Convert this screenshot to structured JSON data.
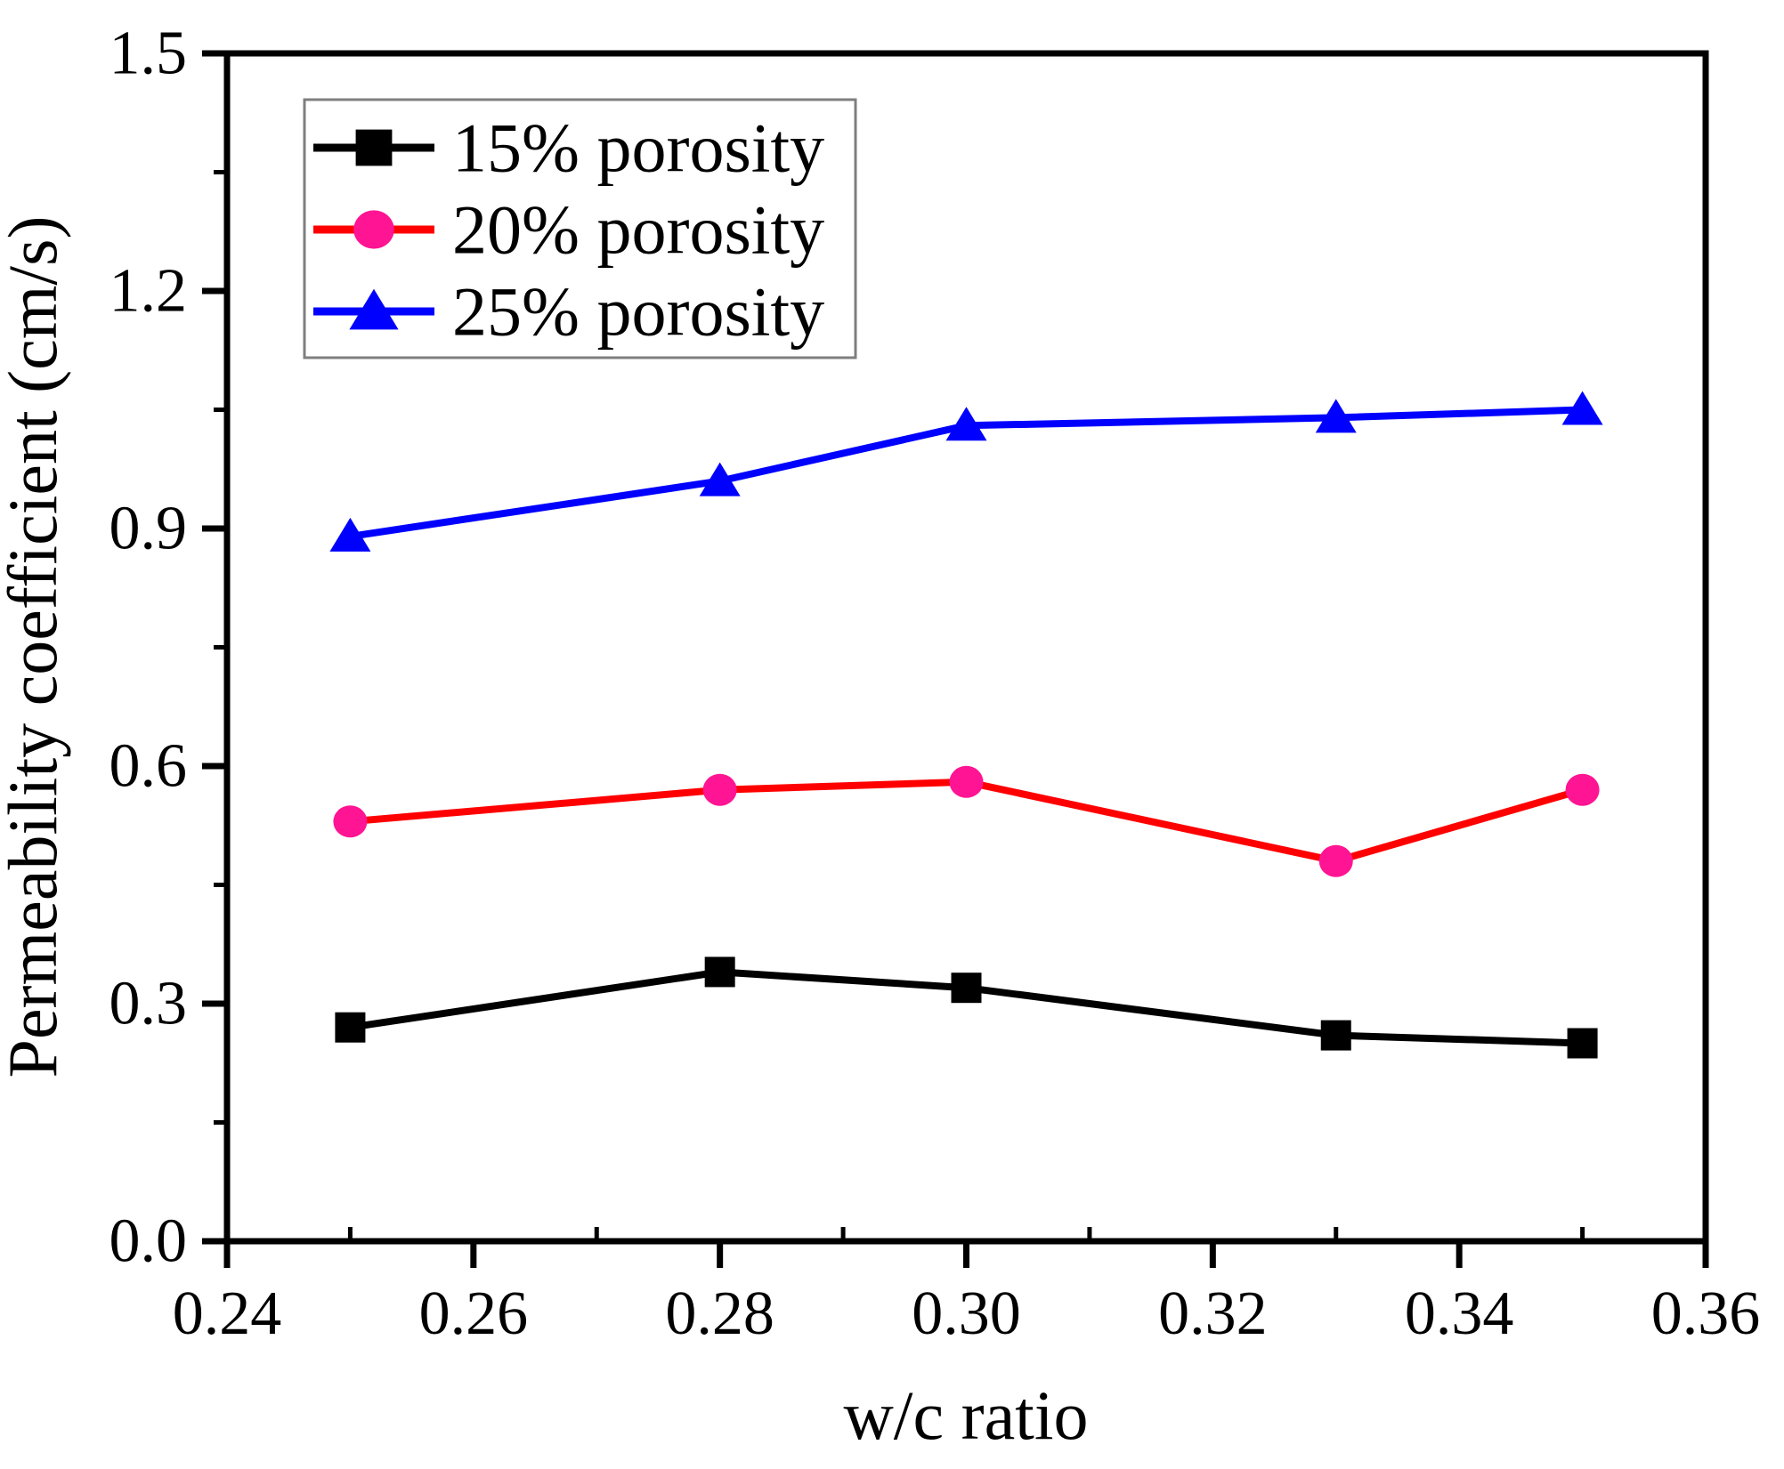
{
  "chart_data": {
    "type": "line",
    "title": "",
    "xlabel": "w/c ratio",
    "ylabel": "Permeability coefficient (cm/s)",
    "xlim": [
      0.24,
      0.36
    ],
    "ylim": [
      0.0,
      1.5
    ],
    "x_major_ticks": [
      0.24,
      0.26,
      0.28,
      0.3,
      0.32,
      0.34,
      0.36
    ],
    "x_tick_labels": [
      "0.24",
      "0.26",
      "0.28",
      "0.30",
      "0.32",
      "0.34",
      "0.36"
    ],
    "y_major_ticks": [
      0.0,
      0.3,
      0.6,
      0.9,
      1.2,
      1.5
    ],
    "y_tick_labels": [
      "0.0",
      "0.3",
      "0.6",
      "0.9",
      "1.2",
      "1.5"
    ],
    "grid": false,
    "legend_position": "top-left",
    "x": [
      0.25,
      0.28,
      0.3,
      0.33,
      0.35
    ],
    "series": [
      {
        "name": "15% porosity",
        "line_color": "#000000",
        "marker": "square",
        "marker_color": "#000000",
        "values": [
          0.27,
          0.34,
          0.32,
          0.26,
          0.25
        ]
      },
      {
        "name": "20% porosity",
        "line_color": "#FF0000",
        "marker": "circle",
        "marker_color": "#FF1493",
        "values": [
          0.53,
          0.57,
          0.58,
          0.48,
          0.57
        ]
      },
      {
        "name": "25% porosity",
        "line_color": "#0000FF",
        "marker": "triangle",
        "marker_color": "#0000FF",
        "values": [
          0.89,
          0.96,
          1.03,
          1.04,
          1.05
        ]
      }
    ],
    "colors": {
      "axis": "#000000",
      "background": "#FFFFFF",
      "legend_border": "#7F7F7F"
    }
  }
}
